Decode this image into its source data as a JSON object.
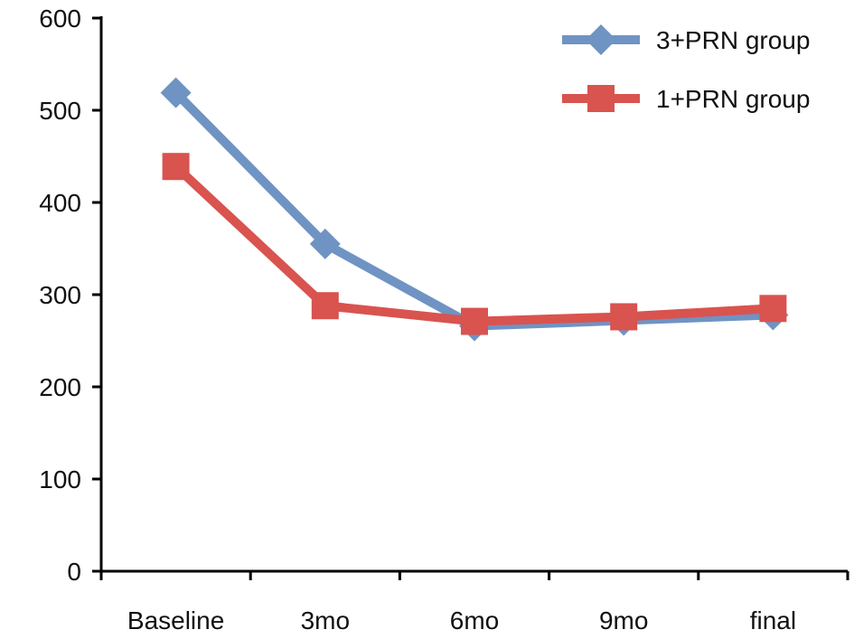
{
  "chart_data": {
    "type": "line",
    "title": "",
    "xlabel": "",
    "ylabel": "",
    "categories": [
      "Baseline",
      "3mo",
      "6mo",
      "9mo",
      "final"
    ],
    "ylim": [
      0,
      600
    ],
    "yticks": [
      "0",
      "100",
      "200",
      "300",
      "400",
      "500",
      "600"
    ],
    "grid": false,
    "legend_position": "top-right",
    "series": [
      {
        "name": "3+PRN group",
        "values": [
          519,
          355,
          266,
          272,
          278
        ],
        "color": "#6f93c3",
        "marker": "diamond"
      },
      {
        "name": "1+PRN group",
        "values": [
          439,
          288,
          271,
          276,
          285
        ],
        "color": "#d9534f",
        "marker": "square"
      }
    ]
  }
}
